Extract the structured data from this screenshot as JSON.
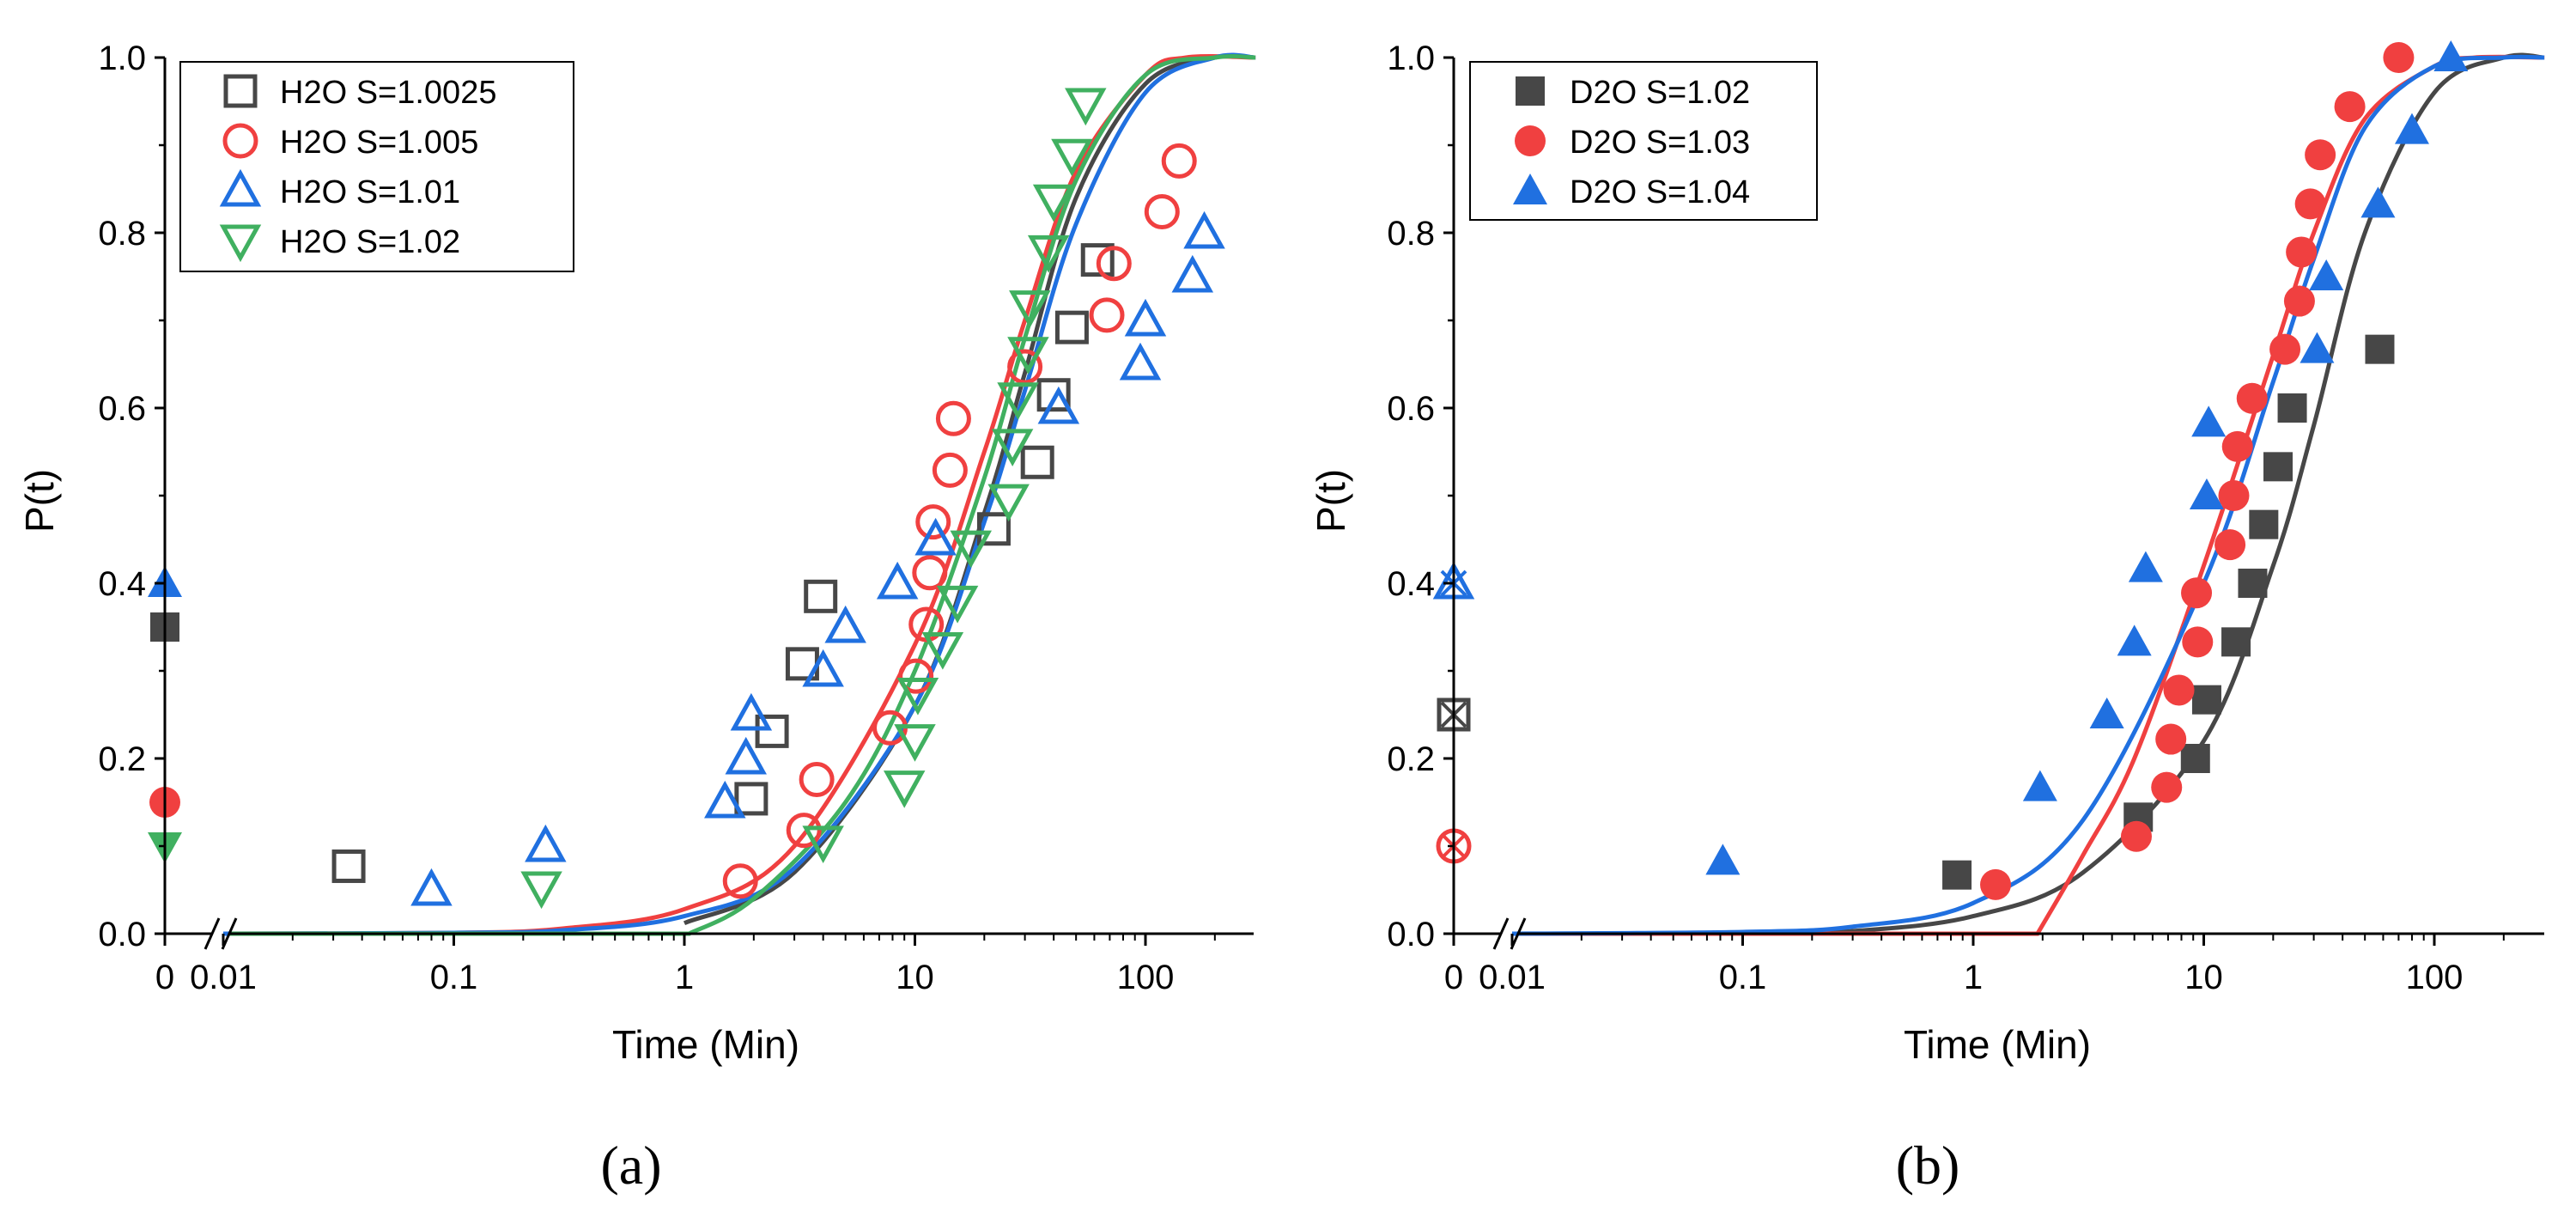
{
  "chart_data": [
    {
      "type": "scatter",
      "panel_label": "(a)",
      "xlabel": "Time (Min)",
      "ylabel": "P(t)",
      "x_scale": "log with axis break",
      "x_ticks": [
        "0",
        "0.01",
        "0.1",
        "1",
        "10",
        "100"
      ],
      "y_ticks": [
        "0.0",
        "0.2",
        "0.4",
        "0.6",
        "0.8",
        "1.0"
      ],
      "ylim": [
        0,
        1
      ],
      "legend_position": "top-left",
      "series": [
        {
          "name": "H2O S=1.0025",
          "color": "#474747",
          "marker": "open-square",
          "points": [
            [
              0.035,
              0.077
            ],
            [
              1.95,
              0.154
            ],
            [
              2.4,
              0.231
            ],
            [
              3.25,
              0.308
            ],
            [
              3.9,
              0.385
            ],
            [
              22,
              0.462
            ],
            [
              34,
              0.538
            ],
            [
              40,
              0.615
            ],
            [
              48,
              0.692
            ],
            [
              62,
              0.769
            ]
          ],
          "zero_time_value": 0.35,
          "fit_curve": [
            [
              1.0,
              0.012
            ],
            [
              3,
              0.07
            ],
            [
              10,
              0.26
            ],
            [
              20,
              0.48
            ],
            [
              30,
              0.64
            ],
            [
              50,
              0.84
            ],
            [
              100,
              0.97
            ],
            [
              200,
              1.0
            ],
            [
              300,
              1.0
            ]
          ]
        },
        {
          "name": "H2O S=1.005",
          "color": "#f04040",
          "marker": "open-circle",
          "points": [
            [
              1.75,
              0.06
            ],
            [
              3.3,
              0.118
            ],
            [
              3.75,
              0.176
            ],
            [
              7.8,
              0.235
            ],
            [
              10.1,
              0.294
            ],
            [
              11.2,
              0.353
            ],
            [
              11.6,
              0.412
            ],
            [
              12,
              0.47
            ],
            [
              14.2,
              0.529
            ],
            [
              14.7,
              0.588
            ],
            [
              30,
              0.647
            ],
            [
              68,
              0.706
            ],
            [
              73,
              0.765
            ],
            [
              118,
              0.824
            ],
            [
              140,
              0.882
            ]
          ],
          "zero_time_value": 0.15,
          "fit_curve": [
            [
              0.01,
              0.0
            ],
            [
              0.1,
              0.001
            ],
            [
              0.3,
              0.006
            ],
            [
              1,
              0.028
            ],
            [
              3,
              0.1
            ],
            [
              10,
              0.33
            ],
            [
              20,
              0.55
            ],
            [
              30,
              0.7
            ],
            [
              50,
              0.87
            ],
            [
              100,
              0.98
            ],
            [
              150,
              1.0
            ],
            [
              300,
              1.0
            ]
          ]
        },
        {
          "name": "H2O S=1.01",
          "color": "#2070e0",
          "marker": "open-triangle-up",
          "points": [
            [
              0.08,
              0.05
            ],
            [
              0.25,
              0.1
            ],
            [
              1.5,
              0.15
            ],
            [
              1.85,
              0.2
            ],
            [
              1.95,
              0.25
            ],
            [
              4.0,
              0.3
            ],
            [
              5.0,
              0.35
            ],
            [
              8.4,
              0.4
            ],
            [
              12.3,
              0.45
            ],
            [
              42,
              0.6
            ],
            [
              95,
              0.65
            ],
            [
              100,
              0.7
            ],
            [
              160,
              0.75
            ],
            [
              180,
              0.8
            ]
          ],
          "zero_time_value": 0.4,
          "fit_curve": [
            [
              0.01,
              0.0
            ],
            [
              0.1,
              0.001
            ],
            [
              0.3,
              0.004
            ],
            [
              1,
              0.02
            ],
            [
              3,
              0.075
            ],
            [
              10,
              0.26
            ],
            [
              20,
              0.47
            ],
            [
              30,
              0.62
            ],
            [
              50,
              0.81
            ],
            [
              100,
              0.96
            ],
            [
              200,
              1.0
            ],
            [
              300,
              1.0
            ]
          ]
        },
        {
          "name": "H2O S=1.02",
          "color": "#40b060",
          "marker": "open-triangle-down",
          "points": [
            [
              0.24,
              0.053
            ],
            [
              4.0,
              0.105
            ],
            [
              9.0,
              0.168
            ],
            [
              10.0,
              0.221
            ],
            [
              10.3,
              0.274
            ],
            [
              13.2,
              0.326
            ],
            [
              15.3,
              0.379
            ],
            [
              17.5,
              0.442
            ],
            [
              25.5,
              0.495
            ],
            [
              26.5,
              0.558
            ],
            [
              28,
              0.611
            ],
            [
              31,
              0.663
            ],
            [
              31.5,
              0.716
            ],
            [
              38,
              0.779
            ],
            [
              40,
              0.837
            ],
            [
              48,
              0.889
            ],
            [
              55,
              0.947
            ]
          ],
          "zero_time_value": 0.1,
          "fit_curve": [
            [
              1.05,
              0.0
            ],
            [
              2,
              0.04
            ],
            [
              5,
              0.15
            ],
            [
              10,
              0.3
            ],
            [
              20,
              0.52
            ],
            [
              30,
              0.68
            ],
            [
              50,
              0.86
            ],
            [
              100,
              0.98
            ],
            [
              200,
              1.0
            ],
            [
              300,
              1.0
            ]
          ]
        }
      ]
    },
    {
      "type": "scatter",
      "panel_label": "(b)",
      "xlabel": "Time (Min)",
      "ylabel": "P(t)",
      "x_scale": "log with axis break",
      "x_ticks": [
        "0",
        "0.01",
        "0.1",
        "1",
        "10",
        "100"
      ],
      "y_ticks": [
        "0.0",
        "0.2",
        "0.4",
        "0.6",
        "0.8",
        "1.0"
      ],
      "ylim": [
        0,
        1
      ],
      "legend_position": "top-left",
      "series": [
        {
          "name": "D2O S=1.02",
          "color": "#474747",
          "marker": "filled-square",
          "points": [
            [
              0.85,
              0.067
            ],
            [
              5.2,
              0.133
            ],
            [
              9.2,
              0.2
            ],
            [
              10.3,
              0.267
            ],
            [
              13.8,
              0.333
            ],
            [
              16.3,
              0.4
            ],
            [
              18.2,
              0.467
            ],
            [
              21,
              0.533
            ],
            [
              24.2,
              0.6
            ],
            [
              58,
              0.667
            ]
          ],
          "zero_time_value": 0.25,
          "fit_curve": [
            [
              0.1,
              0.0
            ],
            [
              0.3,
              0.003
            ],
            [
              1,
              0.02
            ],
            [
              3,
              0.07
            ],
            [
              10,
              0.22
            ],
            [
              20,
              0.42
            ],
            [
              30,
              0.58
            ],
            [
              50,
              0.8
            ],
            [
              100,
              0.96
            ],
            [
              200,
              1.0
            ],
            [
              300,
              1.0
            ]
          ]
        },
        {
          "name": "D2O S=1.03",
          "color": "#f04040",
          "marker": "filled-circle",
          "points": [
            [
              1.25,
              0.056
            ],
            [
              5.1,
              0.111
            ],
            [
              6.9,
              0.167
            ],
            [
              7.2,
              0.222
            ],
            [
              7.8,
              0.278
            ],
            [
              9.4,
              0.333
            ],
            [
              9.3,
              0.389
            ],
            [
              13,
              0.444
            ],
            [
              13.5,
              0.5
            ],
            [
              14,
              0.556
            ],
            [
              16.2,
              0.611
            ],
            [
              22.5,
              0.667
            ],
            [
              26,
              0.722
            ],
            [
              26.5,
              0.778
            ],
            [
              29,
              0.833
            ],
            [
              32,
              0.889
            ],
            [
              43,
              0.944
            ],
            [
              70,
              1.0
            ]
          ],
          "zero_time_value": 0.1,
          "fit_curve": [
            [
              1.9,
              0.0
            ],
            [
              3,
              0.09
            ],
            [
              5,
              0.2
            ],
            [
              10,
              0.42
            ],
            [
              20,
              0.66
            ],
            [
              30,
              0.8
            ],
            [
              50,
              0.93
            ],
            [
              100,
              0.99
            ],
            [
              150,
              1.0
            ],
            [
              300,
              1.0
            ]
          ]
        },
        {
          "name": "D2O S=1.04",
          "color": "#2070e0",
          "marker": "filled-triangle-up",
          "points": [
            [
              0.082,
              0.083
            ],
            [
              1.95,
              0.167
            ],
            [
              3.8,
              0.25
            ],
            [
              5.0,
              0.333
            ],
            [
              5.6,
              0.417
            ],
            [
              10.3,
              0.5
            ],
            [
              10.5,
              0.583
            ],
            [
              31,
              0.667
            ],
            [
              34,
              0.75
            ],
            [
              57,
              0.833
            ],
            [
              80,
              0.917
            ],
            [
              118,
              1.0
            ]
          ],
          "zero_time_value": 0.4,
          "fit_curve": [
            [
              0.01,
              0.0
            ],
            [
              0.1,
              0.002
            ],
            [
              0.3,
              0.008
            ],
            [
              1,
              0.035
            ],
            [
              3,
              0.13
            ],
            [
              10,
              0.4
            ],
            [
              20,
              0.63
            ],
            [
              30,
              0.77
            ],
            [
              50,
              0.92
            ],
            [
              100,
              0.99
            ],
            [
              200,
              1.0
            ],
            [
              300,
              1.0
            ]
          ]
        }
      ]
    }
  ]
}
